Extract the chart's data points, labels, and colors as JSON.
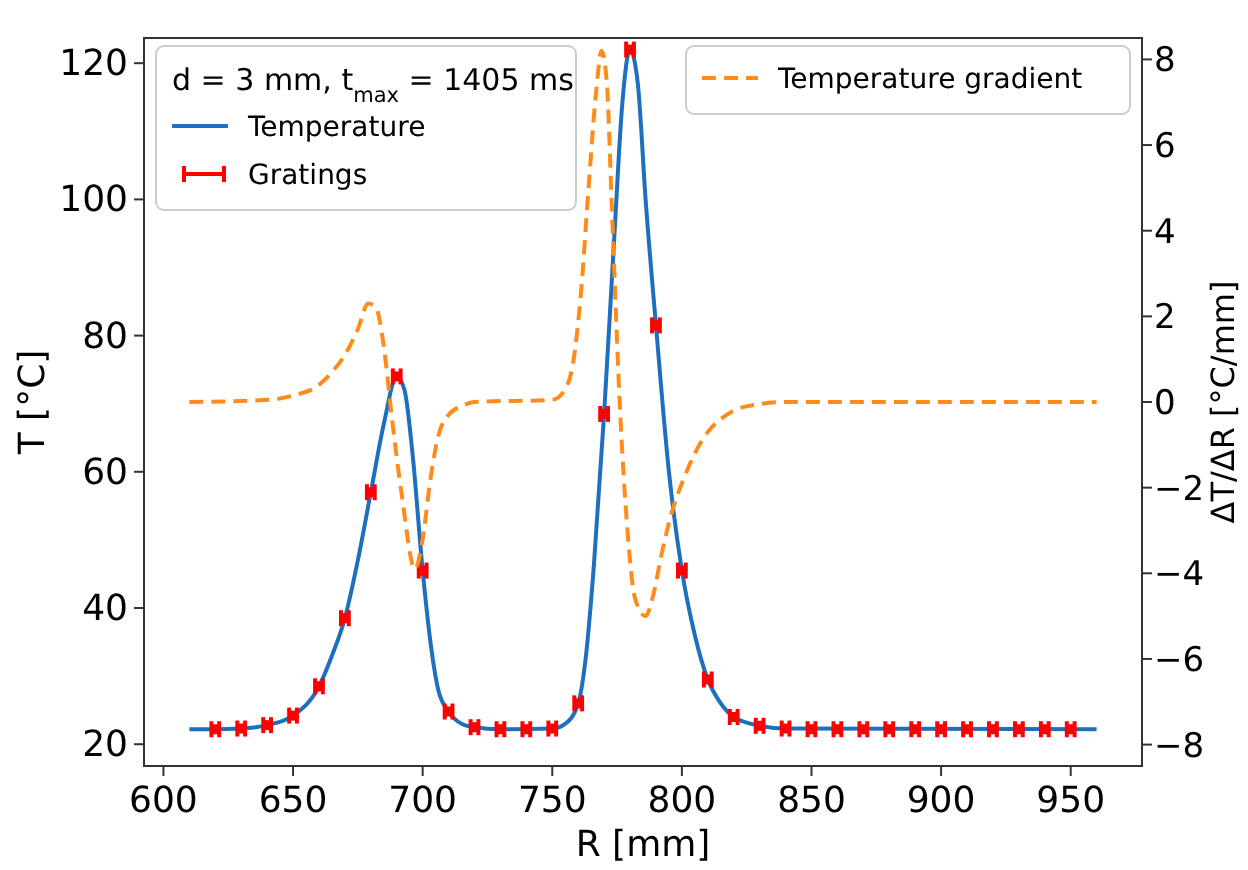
{
  "chart_data": {
    "type": "line",
    "xlabel": "R [mm]",
    "ylabel": "T [°C]",
    "y2label": "ΔT/ΔR [°C/mm]",
    "legend_title": "d = 3 mm, t$_{max}$ = 1405 ms",
    "legend": "top left",
    "xlim": [
      592.5,
      977.5
    ],
    "xticks": [
      600,
      650,
      700,
      750,
      800,
      850,
      900,
      950
    ],
    "ylim": [
      16.8,
      123.7
    ],
    "yticks": [
      20,
      40,
      60,
      80,
      100,
      120
    ],
    "y2lim": [
      -8.5,
      8.5
    ],
    "y2ticks": [
      {
        "value": -8,
        "label": "−8"
      },
      {
        "value": -6,
        "label": "−6"
      },
      {
        "value": -4,
        "label": "−4"
      },
      {
        "value": -2,
        "label": "−2"
      },
      0,
      2,
      4,
      6,
      8
    ],
    "series": [
      {
        "name": "Temperature",
        "color": "#1f6fbf",
        "line_style": "solid",
        "x": [
          610,
          620,
          630,
          640,
          650,
          660,
          665,
          670,
          675,
          680,
          685,
          690,
          693,
          696,
          700,
          703,
          706,
          710,
          715,
          720,
          730,
          750,
          755,
          760,
          763,
          766,
          770,
          774,
          777,
          780,
          783,
          786,
          790,
          795,
          800,
          805,
          810,
          815,
          820,
          830,
          840,
          960
        ],
        "values": [
          22.2,
          22.2,
          22.3,
          22.8,
          24.2,
          28.5,
          33,
          38.5,
          47,
          57,
          67,
          74,
          72,
          63,
          45.5,
          35,
          28,
          24.8,
          23,
          22.5,
          22.2,
          22.3,
          23,
          26,
          33,
          46,
          68.5,
          95,
          114,
          122,
          117,
          100,
          81.5,
          60,
          45.5,
          36,
          29.5,
          26,
          24,
          22.7,
          22.3,
          22.2
        ]
      },
      {
        "name": "Gratings",
        "type": "scatter",
        "color": "#ff0000",
        "marker": "square",
        "x": [
          620,
          630,
          640,
          650,
          660,
          670,
          680,
          690,
          700,
          710,
          720,
          730,
          740,
          750,
          760,
          770,
          780,
          790,
          800,
          810,
          820,
          830,
          840,
          850,
          860,
          870,
          880,
          890,
          900,
          910,
          920,
          930,
          940,
          950
        ],
        "values": [
          22.2,
          22.3,
          22.8,
          24.2,
          28.5,
          38.5,
          57,
          74,
          45.5,
          24.8,
          22.5,
          22.2,
          22.2,
          22.3,
          26,
          68.5,
          122,
          81.5,
          45.5,
          29.5,
          24,
          22.7,
          22.3,
          22.2,
          22.2,
          22.2,
          22.2,
          22.2,
          22.2,
          22.2,
          22.2,
          22.2,
          22.2,
          22.2
        ],
        "xerrors": [
          1.5,
          1.5,
          1.5,
          1.5,
          1.5,
          1.5,
          1.5,
          1.5,
          1.5,
          1.5,
          1.5,
          1.5,
          1.5,
          1.5,
          1.5,
          1.5,
          1.5,
          1.5,
          1.5,
          1.5,
          1.5,
          1.5,
          1.5,
          1.5,
          1.5,
          1.5,
          1.5,
          1.5,
          1.5,
          1.5,
          1.5,
          1.5,
          1.5,
          1.5
        ]
      },
      {
        "name": "Temperature gradient",
        "axis": "y2",
        "color": "#ff8c1a",
        "line_style": "dashed",
        "x": [
          610,
          640,
          650,
          660,
          665,
          670,
          675,
          679,
          682,
          685,
          688,
          692,
          697,
          700,
          703,
          706,
          710,
          715,
          720,
          750,
          755,
          758,
          761,
          764,
          767,
          769,
          771,
          773,
          776,
          779,
          782,
          786,
          789,
          792,
          796,
          800,
          805,
          810,
          815,
          820,
          830,
          840,
          960
        ],
        "values": [
          0,
          0.05,
          0.15,
          0.4,
          0.7,
          1.1,
          1.7,
          2.3,
          2.2,
          1.3,
          -0.3,
          -2.2,
          -3.9,
          -3.2,
          -1.8,
          -0.8,
          -0.3,
          -0.1,
          0,
          0.05,
          0.3,
          0.9,
          2.5,
          5,
          7.3,
          8.2,
          7.5,
          4.5,
          0,
          -3,
          -4.6,
          -5,
          -4.5,
          -3.6,
          -2.6,
          -1.9,
          -1.2,
          -0.7,
          -0.4,
          -0.2,
          -0.05,
          0,
          0
        ]
      }
    ]
  }
}
